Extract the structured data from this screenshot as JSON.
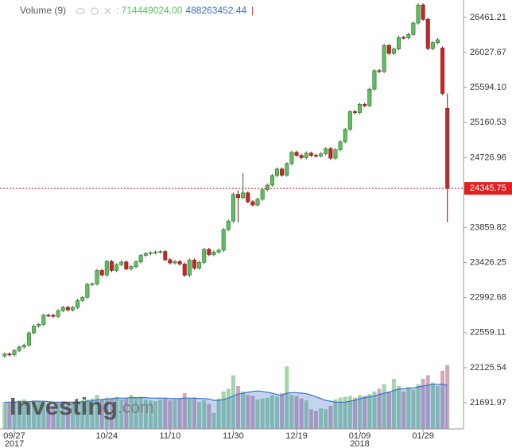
{
  "chart_data": {
    "type": "candlestick",
    "legend": {
      "name": "Volume (9)",
      "volume_label": "714449024.00",
      "ma_label": "488263452.44",
      "separator": "|"
    },
    "watermark": {
      "brand": "Investing",
      "suffix": ".com"
    },
    "last_price_label": "24345.75",
    "categories": [
      null,
      null,
      "09/27",
      null,
      null,
      null,
      null,
      null,
      null,
      null,
      null,
      null,
      null,
      null,
      null,
      null,
      null,
      null,
      null,
      null,
      null,
      "10/24",
      null,
      null,
      null,
      null,
      null,
      null,
      null,
      null,
      null,
      null,
      null,
      null,
      "11/10",
      null,
      null,
      null,
      null,
      null,
      null,
      null,
      null,
      null,
      null,
      null,
      null,
      "11/30",
      null,
      null,
      null,
      null,
      null,
      null,
      null,
      null,
      null,
      null,
      null,
      null,
      "12/19",
      null,
      null,
      null,
      null,
      null,
      null,
      null,
      null,
      null,
      null,
      null,
      null,
      "01/09",
      null,
      null,
      null,
      null,
      null,
      null,
      null,
      null,
      null,
      null,
      null,
      null,
      "01/29",
      null,
      null,
      null,
      null,
      null
    ],
    "x_year_labels": [
      {
        "category": "09/27",
        "label": "2017"
      },
      {
        "category": "01/09",
        "label": "2018"
      }
    ],
    "open": [
      22270,
      22296,
      22284,
      22340,
      22381,
      22405,
      22557,
      22641,
      22661,
      22775,
      22774,
      22761,
      22831,
      22873,
      22841,
      22872,
      22957,
      22997,
      23157,
      23163,
      23329,
      23273,
      23441,
      23329,
      23400,
      23434,
      23348,
      23377,
      23435,
      23516,
      23539,
      23548,
      23557,
      23563,
      23462,
      23422,
      23439,
      23409,
      23271,
      23458,
      23358,
      23430,
      23590,
      23526,
      23557,
      23580,
      23836,
      23940,
      24272,
      24231,
      24290,
      24180,
      24140,
      24211,
      24329,
      24386,
      24504,
      24585,
      24509,
      24651,
      24792,
      24754,
      24726,
      24782,
      24754,
      24746,
      24774,
      24838,
      24719,
      24824,
      24922,
      25075,
      25295,
      25283,
      25385,
      25369,
      25574,
      25803,
      25792,
      26115,
      26017,
      26071,
      26214,
      26210,
      26252,
      26392,
      26616,
      26439,
      26076,
      26149,
      26083,
      25337
    ],
    "high": [
      22316,
      22316,
      22360,
      22401,
      22425,
      22577,
      22661,
      22681,
      22795,
      22795,
      22794,
      22851,
      22893,
      22893,
      22892,
      22977,
      23017,
      23177,
      23183,
      23349,
      23349,
      23461,
      23461,
      23420,
      23454,
      23454,
      23397,
      23455,
      23536,
      23559,
      23568,
      23577,
      23583,
      23583,
      23482,
      23459,
      23459,
      23429,
      23478,
      23478,
      23450,
      23610,
      23610,
      23577,
      23600,
      23856,
      23960,
      24292,
      24322,
      24534,
      24310,
      24200,
      24231,
      24349,
      24406,
      24524,
      24605,
      24605,
      24671,
      24812,
      24812,
      24774,
      24802,
      24802,
      24774,
      24794,
      24858,
      24858,
      24844,
      24942,
      25095,
      25315,
      25315,
      25405,
      25405,
      25594,
      25823,
      25823,
      26135,
      26135,
      26091,
      26234,
      26234,
      26272,
      26412,
      26636,
      26636,
      26459,
      26169,
      26206,
      26103,
      25520
    ],
    "low": [
      22250,
      22264,
      22264,
      22320,
      22361,
      22385,
      22537,
      22621,
      22641,
      22754,
      22741,
      22741,
      22811,
      22821,
      22821,
      22852,
      22937,
      22977,
      23137,
      23143,
      23253,
      23253,
      23309,
      23309,
      23380,
      23328,
      23328,
      23357,
      23415,
      23496,
      23519,
      23528,
      23537,
      23442,
      23402,
      23402,
      23389,
      23251,
      23251,
      23338,
      23338,
      23410,
      23506,
      23506,
      23537,
      23560,
      23816,
      23920,
      23922,
      24211,
      24160,
      24120,
      24120,
      24191,
      24309,
      24366,
      24484,
      24489,
      24489,
      24631,
      24734,
      24706,
      24706,
      24734,
      24726,
      24726,
      24754,
      24699,
      24699,
      24804,
      24902,
      25055,
      25263,
      25263,
      25349,
      25349,
      25554,
      25772,
      25772,
      25997,
      25997,
      26051,
      26190,
      26190,
      26232,
      26372,
      26419,
      26056,
      26056,
      26129,
      25500,
      23924
    ],
    "close": [
      22296,
      22284,
      22340,
      22381,
      22405,
      22557,
      22641,
      22661,
      22775,
      22774,
      22761,
      22831,
      22873,
      22841,
      22872,
      22957,
      22997,
      23157,
      23163,
      23329,
      23273,
      23441,
      23329,
      23400,
      23434,
      23348,
      23377,
      23435,
      23516,
      23539,
      23548,
      23557,
      23563,
      23462,
      23422,
      23439,
      23409,
      23271,
      23458,
      23358,
      23430,
      23590,
      23526,
      23557,
      23580,
      23836,
      23940,
      24272,
      24231,
      24290,
      24180,
      24140,
      24211,
      24329,
      24386,
      24504,
      24585,
      24509,
      24651,
      24792,
      24754,
      24726,
      24782,
      24754,
      24746,
      24774,
      24838,
      24719,
      24824,
      24922,
      25075,
      25295,
      25283,
      25385,
      25369,
      25574,
      25803,
      25792,
      26115,
      26017,
      26071,
      26214,
      26210,
      26252,
      26392,
      26616,
      26439,
      26076,
      26149,
      26186,
      25520,
      24345.75
    ],
    "volume": [
      300000000,
      290000000,
      310000000,
      320000000,
      330000000,
      300000000,
      320000000,
      310000000,
      290000000,
      280000000,
      260000000,
      300000000,
      310000000,
      290000000,
      300000000,
      310000000,
      320000000,
      330000000,
      340000000,
      380000000,
      330000000,
      350000000,
      340000000,
      360000000,
      330000000,
      340000000,
      380000000,
      350000000,
      360000000,
      330000000,
      320000000,
      310000000,
      330000000,
      340000000,
      320000000,
      330000000,
      340000000,
      400000000,
      340000000,
      350000000,
      300000000,
      320000000,
      280000000,
      180000000,
      340000000,
      420000000,
      450000000,
      600000000,
      480000000,
      420000000,
      380000000,
      370000000,
      330000000,
      340000000,
      350000000,
      380000000,
      360000000,
      400000000,
      700000000,
      380000000,
      370000000,
      340000000,
      320000000,
      220000000,
      200000000,
      230000000,
      220000000,
      260000000,
      330000000,
      350000000,
      360000000,
      370000000,
      350000000,
      380000000,
      370000000,
      390000000,
      420000000,
      450000000,
      500000000,
      420000000,
      560000000,
      480000000,
      420000000,
      470000000,
      440000000,
      500000000,
      560000000,
      600000000,
      520000000,
      480000000,
      650000000,
      714449024
    ],
    "volume_ma": [
      300000000,
      300000000,
      300000000,
      305000000,
      305000000,
      305000000,
      310000000,
      310000000,
      310000000,
      305000000,
      300000000,
      300000000,
      300000000,
      300000000,
      300000000,
      300000000,
      305000000,
      310000000,
      315000000,
      325000000,
      330000000,
      335000000,
      340000000,
      345000000,
      345000000,
      345000000,
      350000000,
      350000000,
      350000000,
      350000000,
      345000000,
      345000000,
      345000000,
      345000000,
      340000000,
      340000000,
      340000000,
      345000000,
      345000000,
      345000000,
      340000000,
      340000000,
      335000000,
      320000000,
      320000000,
      330000000,
      345000000,
      370000000,
      390000000,
      400000000,
      410000000,
      420000000,
      425000000,
      420000000,
      410000000,
      400000000,
      385000000,
      375000000,
      400000000,
      405000000,
      405000000,
      400000000,
      395000000,
      380000000,
      360000000,
      340000000,
      320000000,
      310000000,
      300000000,
      300000000,
      300000000,
      310000000,
      320000000,
      340000000,
      350000000,
      360000000,
      370000000,
      385000000,
      400000000,
      410000000,
      430000000,
      445000000,
      450000000,
      455000000,
      460000000,
      470000000,
      480000000,
      490000000,
      500000000,
      500000000,
      500000000,
      488263452.44
    ],
    "up_color": "#5fbf5f",
    "down_color": "#c62828",
    "volume_up_color": "#8fcf9a",
    "volume_down_color": "#c99ab4",
    "ma_color": "#3d6fc9",
    "ylim": [
      21367.5,
      26677.5
    ],
    "vlim": [
      0,
      800000000
    ],
    "yticks": [
      26461.21,
      26027.67,
      {
        "value": 25594.1,
        "label": "25594.10"
      },
      25160.53,
      24726.96,
      23859.82,
      23426.25,
      22992.68,
      22559.11,
      22125.54,
      21691.97
    ]
  }
}
